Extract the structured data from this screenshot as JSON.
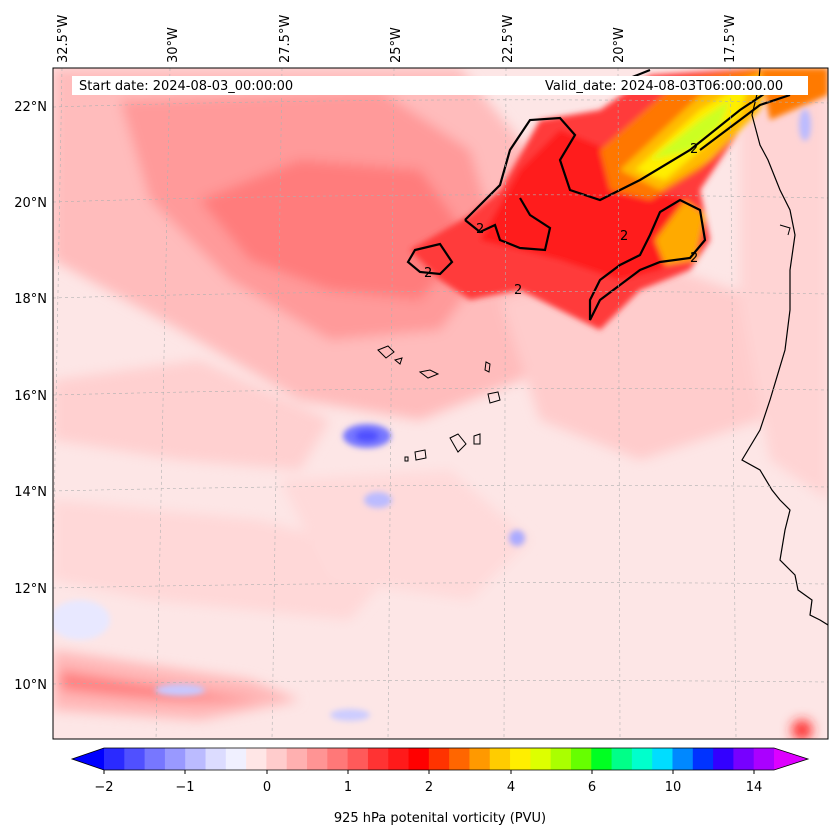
{
  "map": {
    "start_date_text": "Start date: 2024-08-03_00:00:00",
    "valid_date_text": "Valid_date: 2024-08-03T06:00:00.00",
    "lon_labels": [
      "32.5°W",
      "30°W",
      "27.5°W",
      "25°W",
      "22.5°W",
      "20°W",
      "17.5°W"
    ],
    "lat_labels": [
      "22°N",
      "20°N",
      "18°N",
      "16°N",
      "14°N",
      "12°N",
      "10°N"
    ],
    "contour_label": "2",
    "colors": {
      "ocean_base": "#fde8e8",
      "contour": "#000000",
      "coast": "#000000"
    }
  },
  "colorbar": {
    "label": "925 hPa potenital vorticity (PVU)",
    "tick_labels": [
      "−2",
      "−1",
      "0",
      "1",
      "2",
      "4",
      "6",
      "10",
      "14"
    ],
    "colors": [
      "#0000ff",
      "#2a2aff",
      "#5050ff",
      "#7777ff",
      "#9999ff",
      "#bbbbff",
      "#dcdcff",
      "#f0f0ff",
      "#ffe6e6",
      "#ffcccc",
      "#ffb0b0",
      "#ff9494",
      "#ff7878",
      "#ff5a5a",
      "#ff3333",
      "#ff1a1a",
      "#ff0000",
      "#ff3300",
      "#ff6600",
      "#ff9900",
      "#ffcc00",
      "#ffee00",
      "#ddff00",
      "#aaff00",
      "#66ff00",
      "#00ff22",
      "#00ff88",
      "#00ffcc",
      "#00ddff",
      "#0088ff",
      "#0033ff",
      "#3300ff",
      "#7700ff",
      "#aa00ff",
      "#dd00ff"
    ]
  }
}
